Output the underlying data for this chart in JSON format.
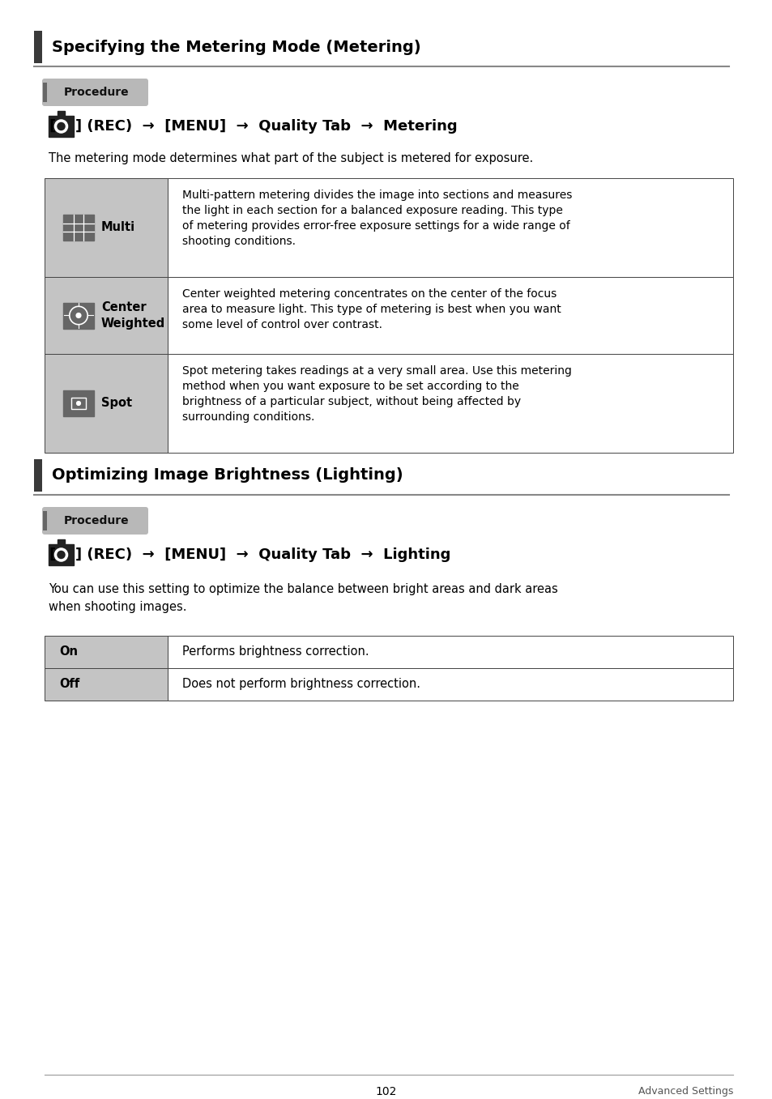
{
  "page_number": "102",
  "footer_right": "Advanced Settings",
  "background_color": "#ffffff",
  "section1_title": "Specifying the Metering Mode (Metering)",
  "section1_procedure_label": "Procedure",
  "section1_desc": "The metering mode determines what part of the subject is metered for exposure.",
  "section1_table": [
    {
      "label": "Multi",
      "icon": "multi",
      "text": "Multi-pattern metering divides the image into sections and measures\nthe light in each section for a balanced exposure reading. This type\nof metering provides error-free exposure settings for a wide range of\nshooting conditions."
    },
    {
      "label": "Center\nWeighted",
      "icon": "center",
      "text": "Center weighted metering concentrates on the center of the focus\narea to measure light. This type of metering is best when you want\nsome level of control over contrast."
    },
    {
      "label": "Spot",
      "icon": "spot",
      "text": "Spot metering takes readings at a very small area. Use this metering\nmethod when you want exposure to be set according to the\nbrightness of a particular subject, without being affected by\nsurrounding conditions."
    }
  ],
  "section2_title": "Optimizing Image Brightness (Lighting)",
  "section2_procedure_label": "Procedure",
  "section2_desc": "You can use this setting to optimize the balance between bright areas and dark areas\nwhen shooting images.",
  "section2_table": [
    {
      "label": "On",
      "text": "Performs brightness correction."
    },
    {
      "label": "Off",
      "text": "Does not perform brightness correction."
    }
  ]
}
